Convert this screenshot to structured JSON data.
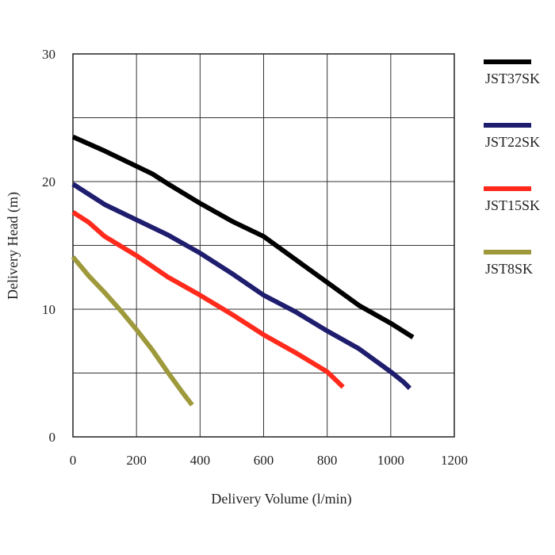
{
  "chart_data": {
    "type": "line",
    "title": "",
    "xlabel": "Delivery Volume (l/min)",
    "ylabel": "Delivery Head (m)",
    "xlim": [
      0,
      1200
    ],
    "ylim": [
      0,
      30
    ],
    "xticks": [
      0,
      200,
      400,
      600,
      800,
      1000,
      1200
    ],
    "yticks": [
      0,
      10,
      20,
      30
    ],
    "grid": true,
    "legend_position": "right",
    "series": [
      {
        "name": "JST37SK",
        "color": "#000000",
        "points": [
          [
            0,
            23.5
          ],
          [
            100,
            22.4
          ],
          [
            200,
            21.2
          ],
          [
            250,
            20.6
          ],
          [
            300,
            19.8
          ],
          [
            400,
            18.3
          ],
          [
            500,
            16.9
          ],
          [
            600,
            15.7
          ],
          [
            700,
            13.9
          ],
          [
            800,
            12.1
          ],
          [
            900,
            10.3
          ],
          [
            1000,
            8.9
          ],
          [
            1070,
            7.8
          ]
        ]
      },
      {
        "name": "JST22SK",
        "color": "#1f1d6e",
        "points": [
          [
            0,
            19.8
          ],
          [
            100,
            18.2
          ],
          [
            200,
            17.0
          ],
          [
            300,
            15.8
          ],
          [
            400,
            14.4
          ],
          [
            500,
            12.8
          ],
          [
            600,
            11.1
          ],
          [
            700,
            9.8
          ],
          [
            800,
            8.3
          ],
          [
            900,
            6.9
          ],
          [
            1000,
            5.1
          ],
          [
            1040,
            4.3
          ],
          [
            1060,
            3.8
          ]
        ]
      },
      {
        "name": "JST15SK",
        "color": "#ff2a1c",
        "points": [
          [
            0,
            17.6
          ],
          [
            50,
            16.8
          ],
          [
            100,
            15.7
          ],
          [
            200,
            14.2
          ],
          [
            300,
            12.5
          ],
          [
            400,
            11.1
          ],
          [
            500,
            9.6
          ],
          [
            600,
            8.0
          ],
          [
            700,
            6.6
          ],
          [
            800,
            5.1
          ],
          [
            850,
            3.9
          ]
        ]
      },
      {
        "name": "JST8SK",
        "color": "#9e9a3c",
        "points": [
          [
            0,
            14.1
          ],
          [
            50,
            12.6
          ],
          [
            100,
            11.3
          ],
          [
            150,
            9.9
          ],
          [
            200,
            8.4
          ],
          [
            250,
            6.8
          ],
          [
            300,
            5.0
          ],
          [
            350,
            3.3
          ],
          [
            375,
            2.5
          ]
        ]
      }
    ]
  }
}
